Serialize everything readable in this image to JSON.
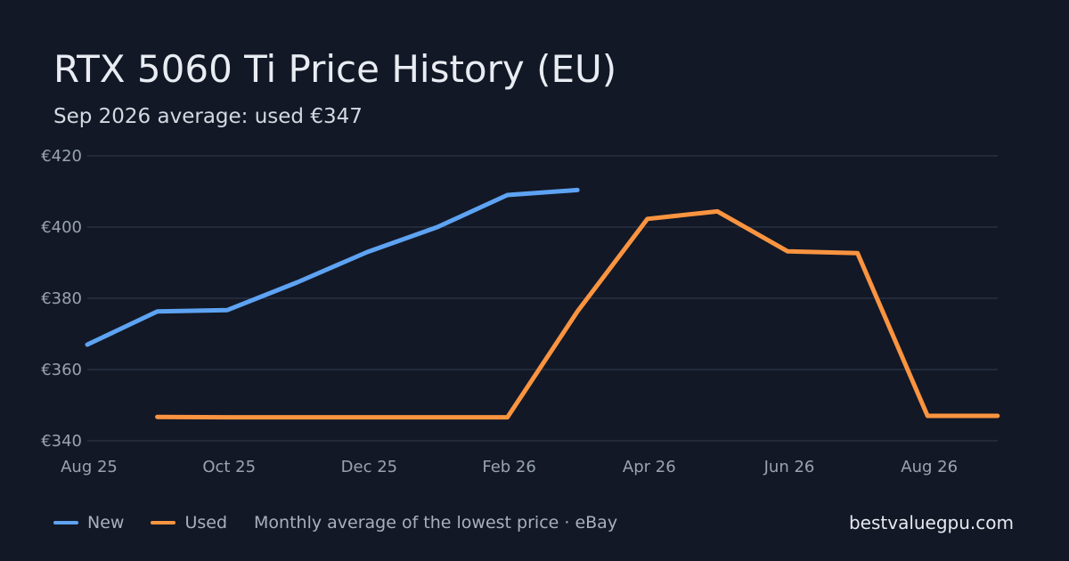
{
  "chart_data": {
    "type": "line",
    "title": "RTX 5060 Ti Price History (EU)",
    "subtitle": "Sep 2026 average: used €347",
    "x": [
      "Aug 25",
      "Sep 25",
      "Oct 25",
      "Nov 25",
      "Dec 25",
      "Jan 26",
      "Feb 26",
      "Mar 26",
      "Apr 26",
      "May 26",
      "Jun 26",
      "Jul 26",
      "Aug 26",
      "Sep 26"
    ],
    "x_tick_labels": [
      "Aug 25",
      "Oct 25",
      "Dec 25",
      "Feb 26",
      "Apr 26",
      "Jun 26",
      "Aug 26"
    ],
    "y_tick_labels": [
      "€420",
      "€400",
      "€380",
      "€360",
      "€340"
    ],
    "y_ticks": [
      420,
      400,
      380,
      360,
      340
    ],
    "ylim": [
      340,
      420
    ],
    "grid": true,
    "legend_position": "bottom-left",
    "series": [
      {
        "name": "New",
        "color": "#5ea3f3",
        "values": [
          367,
          376.3,
          376.7,
          384.5,
          393,
          400,
          409,
          410.4,
          null,
          null,
          null,
          null,
          null,
          null
        ]
      },
      {
        "name": "Used",
        "color": "#fa9440",
        "values": [
          null,
          346.7,
          346.6,
          346.6,
          346.6,
          346.6,
          346.6,
          376.3,
          402.3,
          404.4,
          393.2,
          392.7,
          347,
          347
        ]
      }
    ]
  },
  "legend": {
    "note": "Monthly average of the lowest price · eBay"
  },
  "brand": "bestvaluegpu.com",
  "colors": {
    "background": "#121826",
    "grid": "#273041",
    "tick_text": "#9aa3b2"
  }
}
